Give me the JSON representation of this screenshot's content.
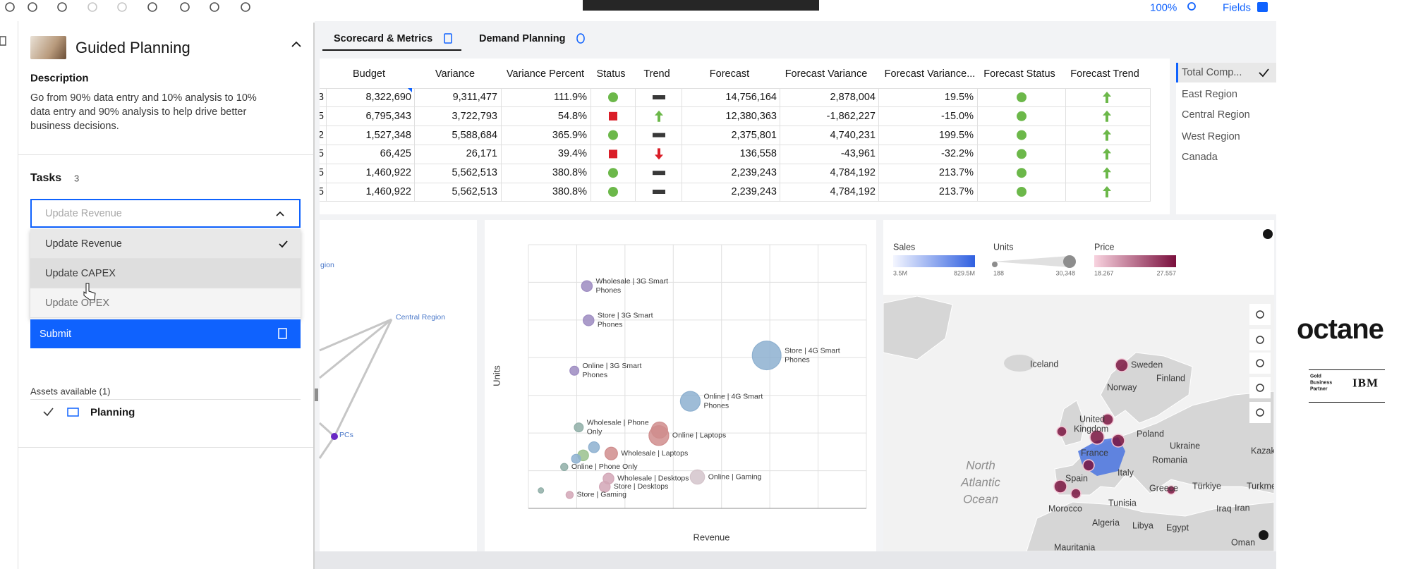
{
  "toolbar": {
    "zoom": "100%",
    "fields": "Fields"
  },
  "panel": {
    "title": "Guided Planning",
    "description_heading": "Description",
    "description": [
      "Go from 90% data entry and 10% analysis to 10%",
      "data entry and 90% analysis to help drive better",
      "business decisions."
    ],
    "tasks_heading": "Tasks",
    "tasks_count": 3,
    "select": "Update Revenue",
    "options": [
      "Update Revenue",
      "Update CAPEX",
      "Update OPEX"
    ],
    "selected": 0,
    "submit": "Submit",
    "assets_heading": "Assets available (1)",
    "asset": "Planning"
  },
  "tabs": [
    "Scorecard & Metrics",
    "Demand Planning"
  ],
  "table": {
    "columns": [
      "Budget",
      "Variance",
      "Variance Percent",
      "Status",
      "Trend",
      "Forecast",
      "Forecast Variance",
      "Forecast Variance...",
      "Forecast Status",
      "Forecast Trend"
    ],
    "row_ids": [
      "3",
      "5",
      "2",
      "5",
      "5",
      "5"
    ],
    "rows": [
      [
        "8,322,690",
        "9,311,477",
        "111.9%",
        "green",
        "flat",
        "14,756,164",
        "2,878,004",
        "19.5%",
        "green",
        "up"
      ],
      [
        "6,795,343",
        "3,722,793",
        "54.8%",
        "red",
        "up",
        "12,380,363",
        "-1,862,227",
        "-15.0%",
        "green",
        "up"
      ],
      [
        "1,527,348",
        "5,588,684",
        "365.9%",
        "green",
        "flat",
        "2,375,801",
        "4,740,231",
        "199.5%",
        "green",
        "up"
      ],
      [
        "66,425",
        "26,171",
        "39.4%",
        "red",
        "down",
        "136,558",
        "-43,961",
        "-32.2%",
        "green",
        "up"
      ],
      [
        "1,460,922",
        "5,562,513",
        "380.8%",
        "green",
        "flat",
        "2,239,243",
        "4,784,192",
        "213.7%",
        "green",
        "up"
      ],
      [
        "1,460,922",
        "5,562,513",
        "380.8%",
        "green",
        "flat",
        "2,239,243",
        "4,784,192",
        "213.7%",
        "green",
        "up"
      ]
    ]
  },
  "filter": {
    "items": [
      "Total Comp...",
      "East Region",
      "Central Region",
      "West Region",
      "Canada"
    ],
    "selected": 0
  },
  "network": {
    "labels": [
      "gion",
      "Central Region",
      "PCs"
    ]
  },
  "chart_data": {
    "type": "scatter",
    "x_label": "Revenue",
    "y_label": "Units",
    "xlim": [
      0,
      10
    ],
    "ylim": [
      0,
      10
    ],
    "grid": true,
    "x": [
      1.73,
      1.78,
      1.36,
      7.05,
      4.79,
      1.49,
      3.86,
      2.45,
      1.06,
      2.37,
      5.0,
      2.26,
      1.22,
      1.94,
      1.62,
      1.41,
      0.37,
      3.88
    ],
    "y": [
      8.43,
      7.13,
      5.22,
      5.8,
      4.06,
      3.07,
      2.76,
      2.08,
      1.57,
      1.13,
      1.19,
      0.82,
      0.51,
      2.32,
      2.01,
      1.88,
      0.68,
      2.97
    ],
    "sizes": [
      6,
      6,
      5,
      16,
      11,
      5,
      11,
      7,
      4,
      6,
      8,
      6,
      4,
      6,
      6,
      5,
      3,
      9
    ],
    "colors": [
      "#b9a3e3",
      "#b9a3e3",
      "#b9a3e3",
      "#a6cff4",
      "#a6cff4",
      "#a9cdc4",
      "#f4a6a6",
      "#f4a6a6",
      "#a9cdc4",
      "#f7c3d6",
      "#f9e6ee",
      "#f7c3d6",
      "#f7c3d6",
      "#a6cff4",
      "#b5e3a6",
      "#a6cff4",
      "#a9cdc4",
      "#f4a6a6"
    ],
    "labels": [
      [
        "Wholesale | 3G Smart",
        "Phones"
      ],
      [
        "Store | 3G Smart",
        "Phones"
      ],
      [
        "Online | 3G Smart",
        "Phones"
      ],
      [
        "Store | 4G Smart",
        "Phones"
      ],
      [
        "Online | 4G Smart",
        "Phones"
      ],
      [
        "Wholesale | Phone",
        "Only"
      ],
      [
        "Online | Laptops"
      ],
      [
        "Wholesale | Laptops"
      ],
      [
        "Online | Phone Only"
      ],
      [
        "Wholesale | Desktops"
      ],
      [
        "Online | Gaming"
      ],
      [
        "Store | Desktops"
      ],
      [
        "Store | Gaming"
      ],
      null,
      null,
      null,
      null,
      null
    ]
  },
  "map": {
    "legends": [
      {
        "title": "Sales",
        "min": "3.5M",
        "max": "829.5M"
      },
      {
        "title": "Units",
        "min": "188",
        "max": "30,348"
      },
      {
        "title": "Price",
        "min": "18.267",
        "max": "27.557"
      }
    ],
    "labels": [
      "Iceland",
      "Sweden",
      "Finland",
      "Norway",
      "United",
      "Kingdom",
      "Poland",
      "Ukraine",
      "Kazakh",
      "France",
      "Romania",
      "Italy",
      "Spain",
      "Greece",
      "Türkiye",
      "Turkmenista",
      "Morocco",
      "Tunisia",
      "Iraq",
      "Iran",
      "Algeria",
      "Libya",
      "Egypt",
      "Oman",
      "Mauritania"
    ],
    "ocean": [
      "North",
      "Atlantic",
      "Ocean"
    ]
  },
  "brand": {
    "logo": "octane",
    "partner": [
      "Gold",
      "Business",
      "Partner"
    ],
    "ibm": "IBM"
  }
}
